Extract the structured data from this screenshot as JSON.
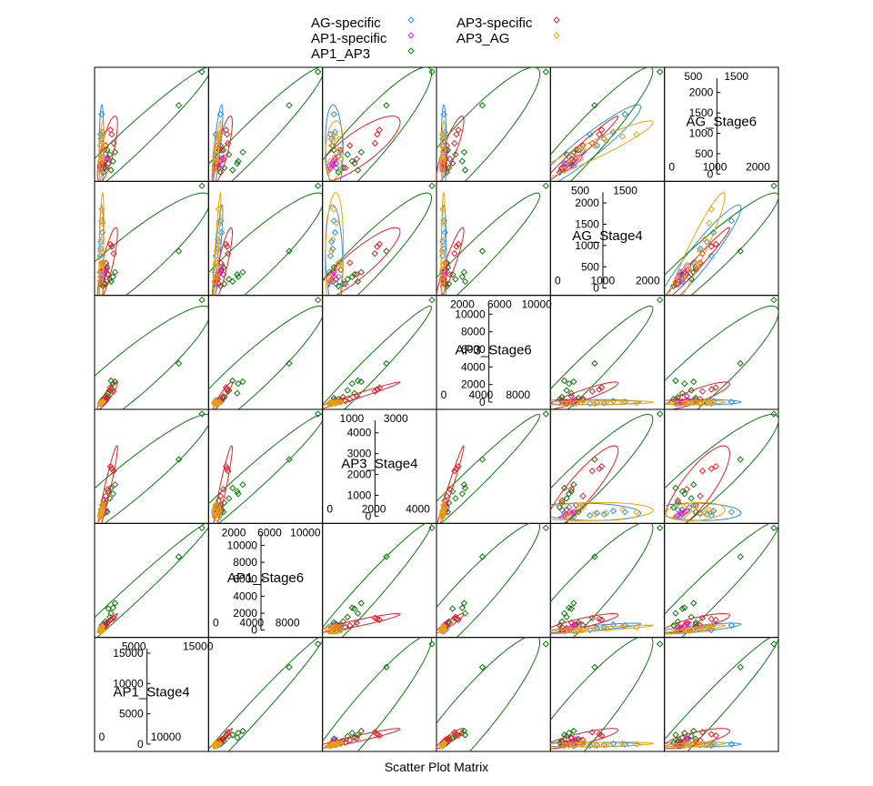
{
  "chart_data": {
    "type": "scatter",
    "subtype": "scatter-plot-matrix",
    "title": "",
    "xlabel": "Scatter Plot Matrix",
    "ylabel": "",
    "variables": [
      "AP1_Stage4",
      "AP1_Stage6",
      "AP3_Stage4",
      "AP3_Stage6",
      "AG_Stage4",
      "AG_Stage6"
    ],
    "ranges": {
      "AP1_Stage4": [
        0,
        15800
      ],
      "AP1_Stage6": [
        0,
        11300
      ],
      "AP3_Stage4": [
        0,
        4600
      ],
      "AP3_Stage6": [
        0,
        10900
      ],
      "AG_Stage4": [
        0,
        2250
      ],
      "AG_Stage6": [
        0,
        2350
      ]
    },
    "diagonal_ticks": {
      "AP1_Stage4": {
        "left": [
          0,
          5000,
          10000,
          15000
        ],
        "bottom": [
          0,
          5000,
          10000,
          15000
        ]
      },
      "AP1_Stage6": {
        "left": [
          0,
          2000,
          4000,
          6000,
          8000,
          10000
        ],
        "bottom": [
          0,
          2000,
          4000,
          6000,
          8000,
          10000
        ]
      },
      "AP3_Stage4": {
        "left": [
          0,
          1000,
          2000,
          3000,
          4000
        ],
        "bottom": [
          0,
          1000,
          2000,
          3000,
          4000
        ]
      },
      "AP3_Stage6": {
        "left": [
          0,
          2000,
          4000,
          6000,
          8000,
          10000
        ],
        "bottom": [
          0,
          2000,
          4000,
          6000,
          8000,
          10000
        ]
      },
      "AG_Stage4": {
        "left": [
          0,
          500,
          1000,
          1500,
          2000
        ],
        "bottom": [
          0,
          500,
          1000,
          1500,
          2000
        ]
      },
      "AG_Stage6": {
        "left": [
          0,
          500,
          1000,
          1500,
          2000
        ],
        "bottom": [
          0,
          500,
          1000,
          1500,
          2000
        ]
      }
    },
    "legend": {
      "placement": "top",
      "columns": [
        [
          {
            "name": "AG-specific",
            "color": "#2a8fe6"
          },
          {
            "name": "AP1-specific",
            "color": "#e020e8"
          },
          {
            "name": "AP1_AP3",
            "color": "#0a7a0a"
          }
        ],
        [
          {
            "name": "AP3-specific",
            "color": "#e0202a"
          },
          {
            "name": "AP3_AG",
            "color": "#f0a000"
          }
        ]
      ]
    },
    "series": [
      {
        "name": "AG-specific",
        "color": "#2a8fe6",
        "points": [
          [
            400,
            800,
            300,
            300,
            1500,
            1400
          ],
          [
            500,
            900,
            350,
            400,
            1250,
            1000
          ],
          [
            300,
            600,
            200,
            200,
            1050,
            850
          ],
          [
            250,
            500,
            250,
            250,
            900,
            700
          ],
          [
            200,
            300,
            150,
            150,
            750,
            950
          ],
          [
            600,
            400,
            500,
            300,
            300,
            450
          ],
          [
            350,
            300,
            250,
            350,
            200,
            300
          ],
          [
            150,
            200,
            100,
            150,
            400,
            250
          ],
          [
            450,
            350,
            600,
            500,
            600,
            550
          ],
          [
            300,
            250,
            400,
            300,
            150,
            200
          ]
        ]
      },
      {
        "name": "AP1-specific",
        "color": "#e020e8",
        "points": [
          [
            900,
            800,
            300,
            350,
            400,
            350
          ],
          [
            600,
            500,
            200,
            200,
            250,
            300
          ],
          [
            1100,
            900,
            350,
            500,
            450,
            400
          ],
          [
            400,
            300,
            150,
            150,
            200,
            200
          ],
          [
            700,
            600,
            250,
            300,
            350,
            250
          ]
        ]
      },
      {
        "name": "AP1_AP3",
        "color": "#0a7a0a",
        "points": [
          [
            15500,
            11300,
            4600,
            10900,
            2250,
            2350
          ],
          [
            12000,
            8200,
            2600,
            4300,
            850,
            1600
          ],
          [
            2400,
            3200,
            1500,
            2400,
            400,
            550
          ],
          [
            2100,
            2700,
            1100,
            2200,
            300,
            350
          ],
          [
            1800,
            2100,
            1350,
            2500,
            200,
            150
          ],
          [
            1600,
            1700,
            900,
            1500,
            250,
            500
          ],
          [
            1400,
            2600,
            1200,
            1200,
            350,
            300
          ],
          [
            900,
            1200,
            700,
            800,
            150,
            200
          ],
          [
            600,
            800,
            500,
            600,
            100,
            100
          ],
          [
            1200,
            1100,
            300,
            700,
            500,
            600
          ]
        ]
      },
      {
        "name": "AP3-specific",
        "color": "#e0202a",
        "points": [
          [
            1900,
            1500,
            2200,
            1600,
            950,
            950
          ],
          [
            1700,
            1400,
            2300,
            1800,
            1000,
            1050
          ],
          [
            2200,
            1600,
            2100,
            1400,
            800,
            750
          ],
          [
            800,
            900,
            600,
            500,
            450,
            600
          ],
          [
            1300,
            1100,
            1300,
            900,
            350,
            400
          ],
          [
            500,
            500,
            400,
            300,
            250,
            300
          ],
          [
            1000,
            800,
            1000,
            600,
            600,
            700
          ],
          [
            700,
            600,
            800,
            400,
            150,
            200
          ]
        ]
      },
      {
        "name": "AP3_AG",
        "color": "#f0a000",
        "points": [
          [
            400,
            600,
            300,
            200,
            1750,
            950
          ],
          [
            500,
            700,
            400,
            300,
            1450,
            900
          ],
          [
            350,
            500,
            250,
            250,
            1100,
            800
          ],
          [
            250,
            400,
            200,
            100,
            850,
            700
          ],
          [
            600,
            300,
            500,
            350,
            600,
            600
          ],
          [
            300,
            200,
            350,
            150,
            450,
            450
          ],
          [
            200,
            350,
            150,
            200,
            300,
            350
          ],
          [
            450,
            250,
            600,
            250,
            550,
            400
          ],
          [
            150,
            150,
            100,
            100,
            200,
            150
          ]
        ]
      }
    ]
  }
}
